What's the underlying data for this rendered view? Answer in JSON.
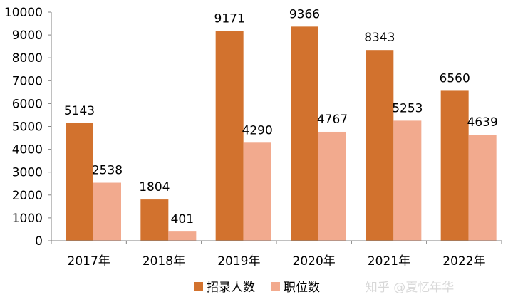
{
  "chart_data": {
    "type": "bar",
    "categories": [
      "2017年",
      "2018年",
      "2019年",
      "2020年",
      "2021年",
      "2022年"
    ],
    "series": [
      {
        "name": "招录人数",
        "color": "#d2722e",
        "values": [
          5143,
          1804,
          9171,
          9366,
          8343,
          6560
        ]
      },
      {
        "name": "职位数",
        "color": "#f2aa8e",
        "values": [
          2538,
          401,
          4290,
          4767,
          5253,
          4639
        ]
      }
    ],
    "ylim": [
      0,
      10000
    ],
    "yticks": [
      "0",
      "1000",
      "2000",
      "3000",
      "4000",
      "5000",
      "6000",
      "7000",
      "8000",
      "9000",
      "10000"
    ],
    "data_labels": [
      [
        "5143",
        "1804",
        "9171",
        "9366",
        "8343",
        "6560"
      ],
      [
        "2538",
        "401",
        "4290",
        "4767",
        "5253",
        "4639"
      ]
    ],
    "grid": false,
    "legend_position": "bottom-center"
  },
  "watermark": "知乎 @夏忆年华"
}
